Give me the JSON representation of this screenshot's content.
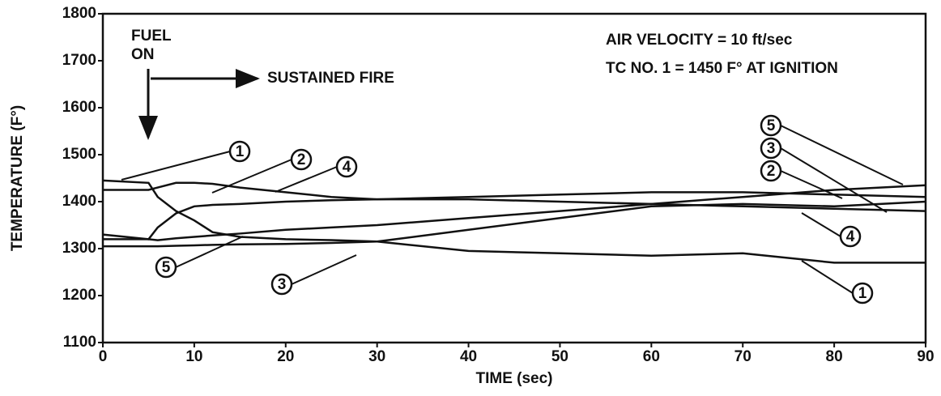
{
  "chart_data": {
    "type": "line",
    "xlabel": "TIME (sec)",
    "ylabel": "TEMPERATURE (F°)",
    "annotations": [
      "FUEL",
      "ON",
      "SUSTAINED FIRE",
      "AIR VELOCITY = 10 ft/sec",
      "TC NO. 1 = 1450 F° AT IGNITION"
    ],
    "x": [
      0,
      5,
      6,
      8,
      10,
      12,
      15,
      20,
      25,
      30,
      40,
      50,
      60,
      70,
      80,
      90
    ],
    "series": [
      {
        "name": "1",
        "color": "#111111",
        "values": [
          1445,
          1440,
          1410,
          1380,
          1360,
          1335,
          1325,
          1320,
          1318,
          1315,
          1295,
          1290,
          1285,
          1290,
          1270,
          1270
        ]
      },
      {
        "name": "2",
        "color": "#111111",
        "values": [
          1330,
          1320,
          1345,
          1375,
          1390,
          1393,
          1395,
          1400,
          1403,
          1405,
          1410,
          1415,
          1420,
          1420,
          1415,
          1410
        ]
      },
      {
        "name": "3",
        "color": "#111111",
        "values": [
          1305,
          1305,
          1305,
          1306,
          1307,
          1308,
          1309,
          1310,
          1312,
          1315,
          1340,
          1365,
          1390,
          1395,
          1390,
          1400
        ]
      },
      {
        "name": "4",
        "color": "#111111",
        "values": [
          1425,
          1425,
          1430,
          1440,
          1440,
          1438,
          1430,
          1420,
          1410,
          1405,
          1405,
          1400,
          1395,
          1390,
          1385,
          1380
        ]
      },
      {
        "name": "5",
        "color": "#111111",
        "values": [
          1320,
          1320,
          1318,
          1322,
          1325,
          1328,
          1332,
          1340,
          1345,
          1350,
          1365,
          1380,
          1395,
          1410,
          1425,
          1435
        ]
      }
    ],
    "xlim": [
      0,
      90
    ],
    "xticks": [
      0,
      10,
      20,
      30,
      40,
      50,
      60,
      70,
      80,
      90
    ],
    "ylim": [
      1100,
      1800
    ],
    "yticks": [
      1100,
      1200,
      1300,
      1400,
      1500,
      1600,
      1700,
      1800
    ]
  }
}
